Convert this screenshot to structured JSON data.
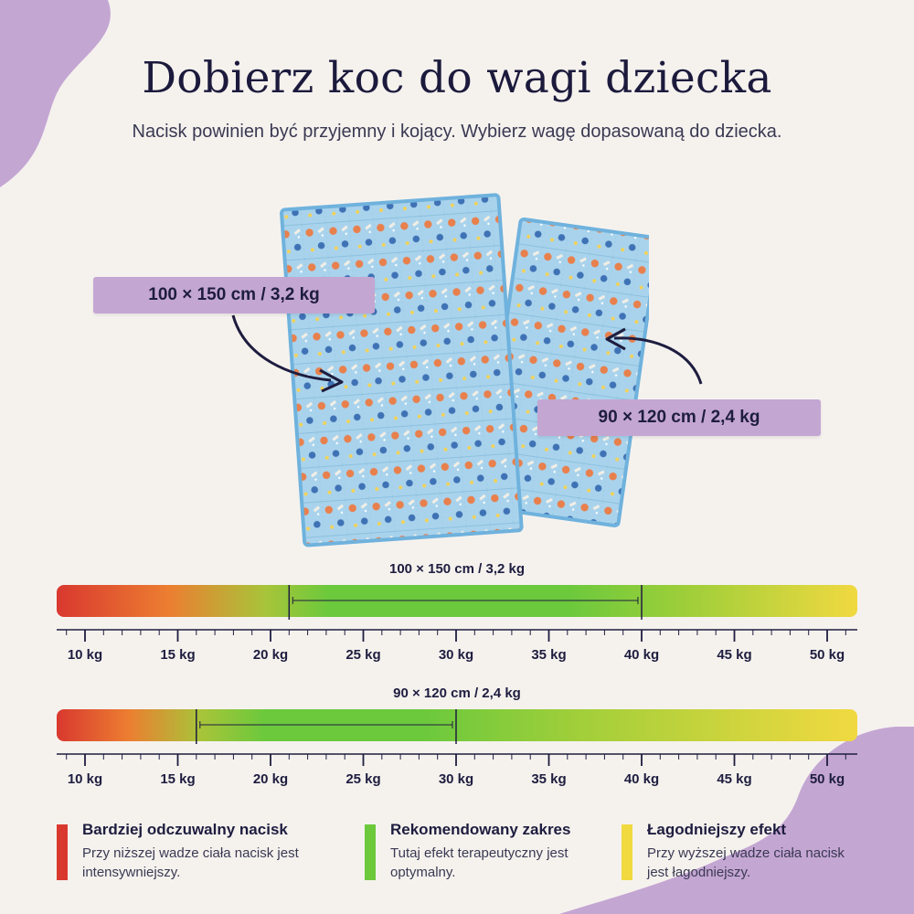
{
  "header": {
    "title": "Dobierz koc do wagi dziecka",
    "subtitle": "Nacisk powinien być przyjemny i kojący. Wybierz wagę dopasowaną do dziecka."
  },
  "callouts": {
    "large": "100 × 150 cm / 3,2 kg",
    "small": "90 × 120 cm / 2,4 kg"
  },
  "scales": [
    {
      "label": "100 × 150 cm / 3,2 kg",
      "recommended_min_kg": 21,
      "recommended_max_kg": 40,
      "tick_labels": [
        "10 kg",
        "15 kg",
        "20 kg",
        "25 kg",
        "30 kg",
        "35 kg",
        "40 kg",
        "45 kg",
        "50 kg"
      ]
    },
    {
      "label": "90 × 120 cm / 2,4 kg",
      "recommended_min_kg": 16,
      "recommended_max_kg": 30,
      "tick_labels": [
        "10 kg",
        "15 kg",
        "20 kg",
        "25 kg",
        "30 kg",
        "35 kg",
        "40 kg",
        "45 kg",
        "50 kg"
      ]
    }
  ],
  "legend": [
    {
      "title": "Bardziej odczuwalny nacisk",
      "desc": "Przy niższej wadze ciała nacisk jest intensywniejszy.",
      "color": "#d9382f"
    },
    {
      "title": "Rekomendowany zakres",
      "desc": "Tutaj efekt terapeutyczny jest optymalny.",
      "color": "#6cc93c"
    },
    {
      "title": "Łagodniejszy efekt",
      "desc": "Przy wyższej wadze ciała nacisk jest łagodniejszy.",
      "color": "#f1d940"
    }
  ],
  "colors": {
    "purple": "#c4a6d3",
    "red": "#d9382f",
    "green": "#6cc93c",
    "yellow": "#f1d940",
    "navy": "#1e1d3f",
    "blanket": "#a9d3ec"
  }
}
